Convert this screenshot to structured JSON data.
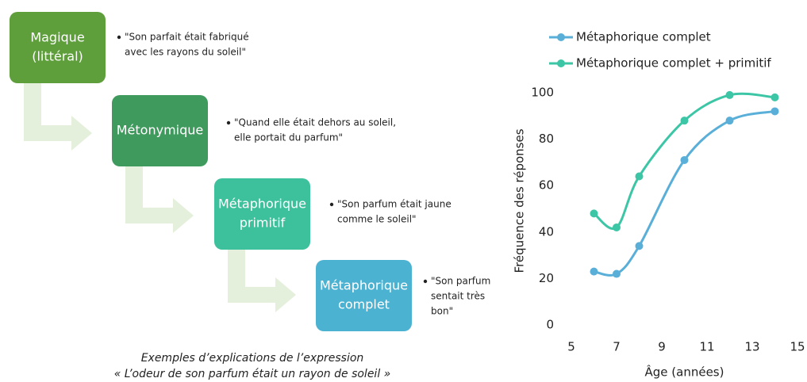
{
  "stages": [
    {
      "label": [
        "Magique",
        "(littéral)"
      ],
      "example": [
        "\"Son parfait était fabriqué",
        "avec les rayons du soleil\""
      ]
    },
    {
      "label": [
        "Métonymique"
      ],
      "example": [
        "\"Quand elle était dehors au soleil,",
        "elle portait du parfum\""
      ]
    },
    {
      "label": [
        "Métaphorique",
        "primitif"
      ],
      "example": [
        "\"Son parfum était jaune",
        "comme le soleil\""
      ]
    },
    {
      "label": [
        "Métaphorique",
        "complet"
      ],
      "example": [
        "\"Son parfum",
        "sentait très",
        "bon\""
      ]
    }
  ],
  "caption": [
    "Exemples d’explications de l’expression",
    "« L’odeur de son parfum était un rayon de soleil »"
  ],
  "chart_data": {
    "type": "line",
    "x": [
      6,
      7,
      8,
      10,
      12,
      14
    ],
    "series": [
      {
        "name": "Métaphorique complet",
        "color": "#5aafd8",
        "values": [
          23,
          22,
          34,
          71,
          88,
          92
        ]
      },
      {
        "name": "Métaphorique complet + primitif",
        "color": "#3cc6a6",
        "values": [
          48,
          42,
          64,
          88,
          99,
          98
        ]
      }
    ],
    "xlim": [
      5,
      15
    ],
    "xticks": [
      5,
      7,
      9,
      11,
      13,
      15
    ],
    "ylim": [
      0,
      100
    ],
    "yticks": [
      0,
      20,
      40,
      60,
      80,
      100
    ],
    "xlabel": "Âge (années)",
    "ylabel": "Fréquence des réponses",
    "grid": false,
    "legend": "top"
  }
}
